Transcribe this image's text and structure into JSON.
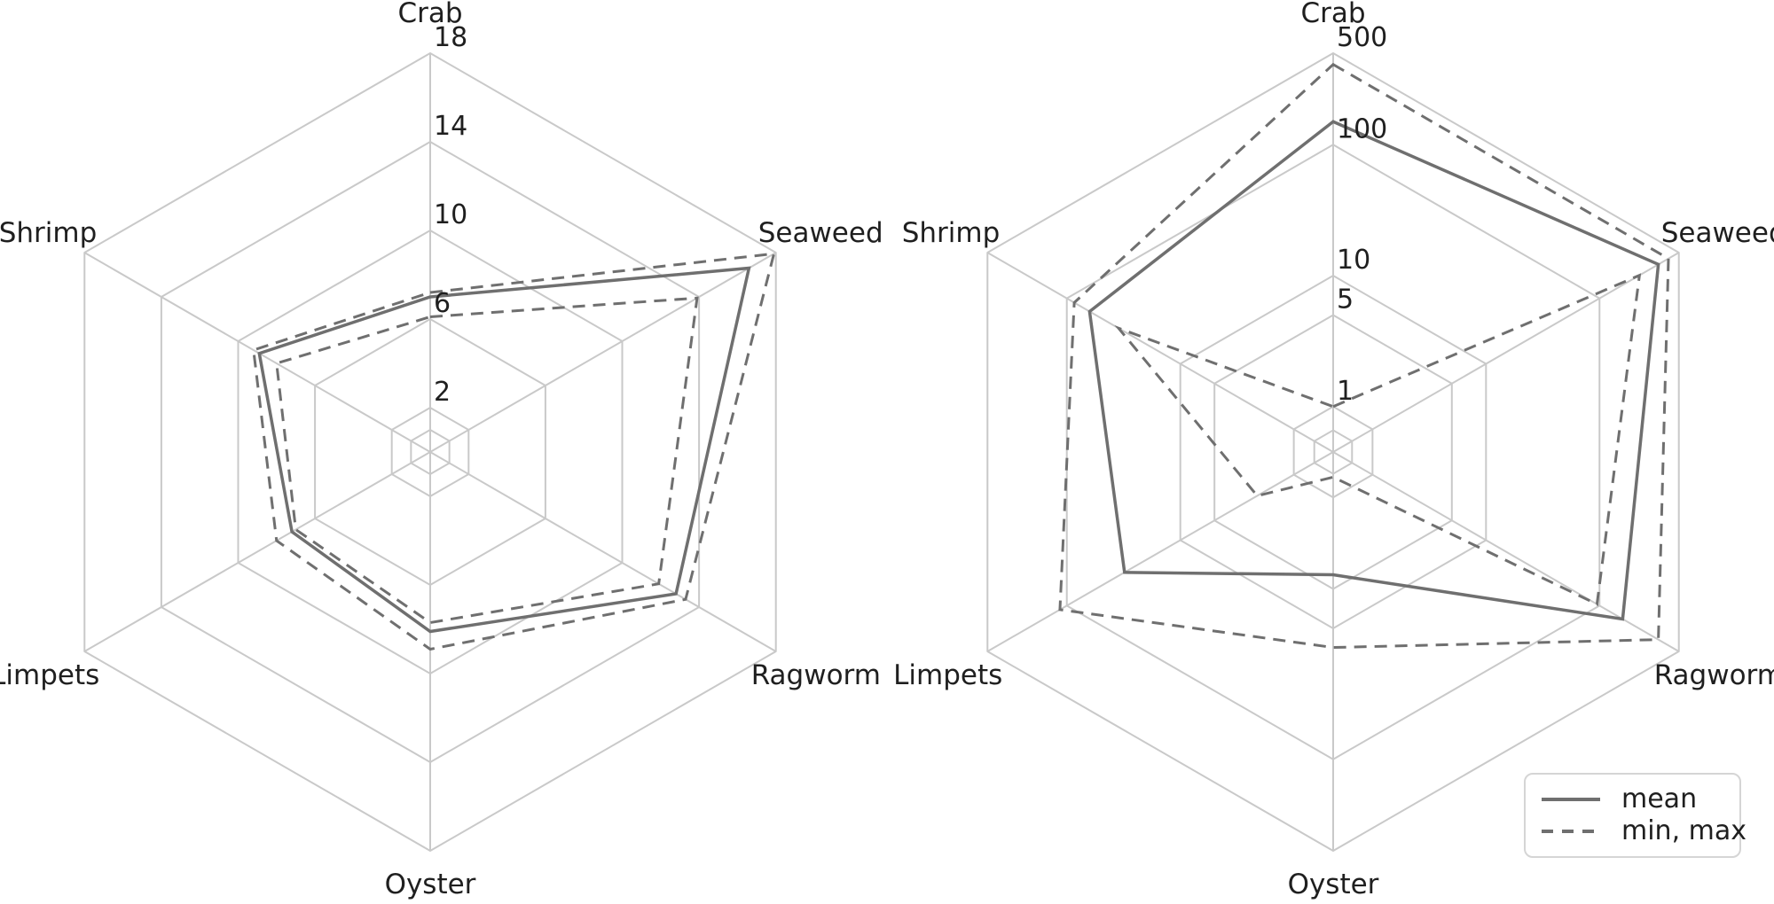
{
  "legend": {
    "items": [
      {
        "label": "mean",
        "style": "solid"
      },
      {
        "label": "min, max",
        "style": "dashed"
      }
    ]
  },
  "colors": {
    "line": "#6f6f6f",
    "grid": "#c9c9c9",
    "text": "#1f1f1f",
    "background": "#ffffff",
    "legend_border": "#d5d5d5"
  },
  "chart_data": [
    {
      "type": "radar",
      "title": "",
      "scale": "linear",
      "categories": [
        "Crab",
        "Seaweed",
        "Ragworm",
        "Oyster",
        "Limpets",
        "Shrimp"
      ],
      "ticks": [
        2,
        6,
        10,
        14,
        18
      ],
      "tick_labels": [
        "2",
        "6",
        "10",
        "14",
        "18"
      ],
      "inner_grid_value": 1,
      "rmin": 0,
      "rmax": 18,
      "grid": true,
      "series": [
        {
          "name": "mean",
          "style": "solid",
          "values": [
            7.0,
            16.6,
            12.8,
            8.1,
            7.2,
            8.9
          ]
        },
        {
          "name": "min",
          "style": "dashed",
          "values": [
            6.1,
            13.9,
            11.9,
            7.7,
            7.0,
            8.0
          ]
        },
        {
          "name": "max",
          "style": "dashed",
          "values": [
            7.2,
            17.9,
            13.3,
            8.9,
            8.0,
            9.2
          ]
        }
      ]
    },
    {
      "type": "radar",
      "title": "",
      "scale": "log",
      "categories": [
        "Crab",
        "Seaweed",
        "Ragworm",
        "Oyster",
        "Limpets",
        "Shrimp"
      ],
      "ticks": [
        1,
        5,
        10,
        100,
        500
      ],
      "tick_labels": [
        "1",
        "5",
        "10",
        "100",
        "500"
      ],
      "inner_grid_value": 0.66,
      "rmin": 0.45,
      "rmax": 500,
      "grid": true,
      "series": [
        {
          "name": "mean",
          "style": "solid",
          "values": [
            150,
            330,
            160,
            3.9,
            31,
            63
          ]
        },
        {
          "name": "min",
          "style": "dashed",
          "values": [
            1.0,
            225,
            95,
            0.7,
            2.1,
            35
          ]
        },
        {
          "name": "max",
          "style": "dashed",
          "values": [
            410,
            405,
            330,
            14,
            115,
            86
          ]
        }
      ]
    }
  ]
}
